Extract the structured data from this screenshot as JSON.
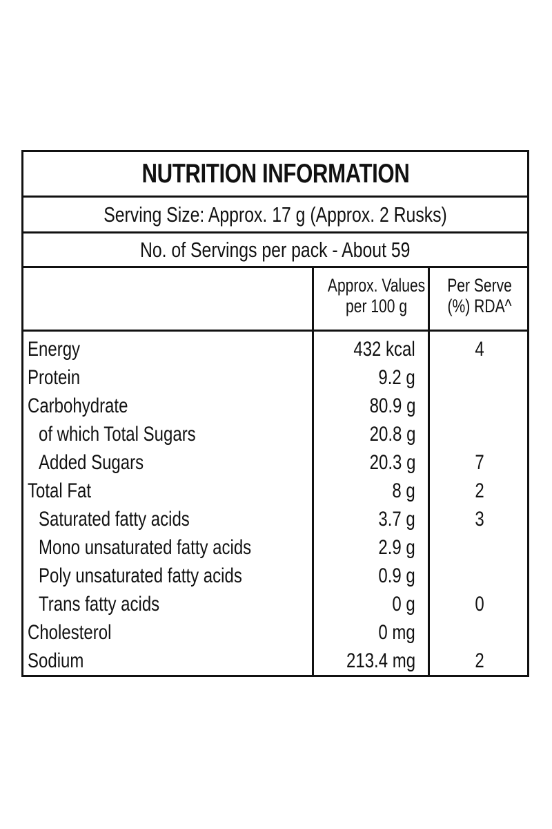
{
  "title": "NUTRITION INFORMATION",
  "serving_size": "Serving Size: Approx. 17 g (Approx. 2 Rusks)",
  "servings_per_pack": "No. of Servings per pack - About 59",
  "columns": {
    "values_line1": "Approx. Values",
    "values_line2": "per 100 g",
    "rda_line1": "Per Serve",
    "rda_line2": "(%) RDA^"
  },
  "rows": [
    {
      "name": "Energy",
      "value": "432 kcal",
      "rda": "4",
      "indent": false
    },
    {
      "name": "Protein",
      "value": "9.2 g",
      "rda": "",
      "indent": false
    },
    {
      "name": "Carbohydrate",
      "value": "80.9 g",
      "rda": "",
      "indent": false
    },
    {
      "name": "of which Total Sugars",
      "value": "20.8 g",
      "rda": "",
      "indent": true
    },
    {
      "name": "Added Sugars",
      "value": "20.3 g",
      "rda": "7",
      "indent": true
    },
    {
      "name": "Total Fat",
      "value": "8 g",
      "rda": "2",
      "indent": false
    },
    {
      "name": "Saturated fatty acids",
      "value": "3.7 g",
      "rda": "3",
      "indent": true
    },
    {
      "name": "Mono unsaturated fatty acids",
      "value": "2.9 g",
      "rda": "",
      "indent": true
    },
    {
      "name": "Poly unsaturated fatty acids",
      "value": "0.9 g",
      "rda": "",
      "indent": true
    },
    {
      "name": "Trans fatty acids",
      "value": "0 g",
      "rda": "0",
      "indent": true
    },
    {
      "name": "Cholesterol",
      "value": "0 mg",
      "rda": "",
      "indent": false
    },
    {
      "name": "Sodium",
      "value": "213.4 mg",
      "rda": "2",
      "indent": false
    }
  ]
}
